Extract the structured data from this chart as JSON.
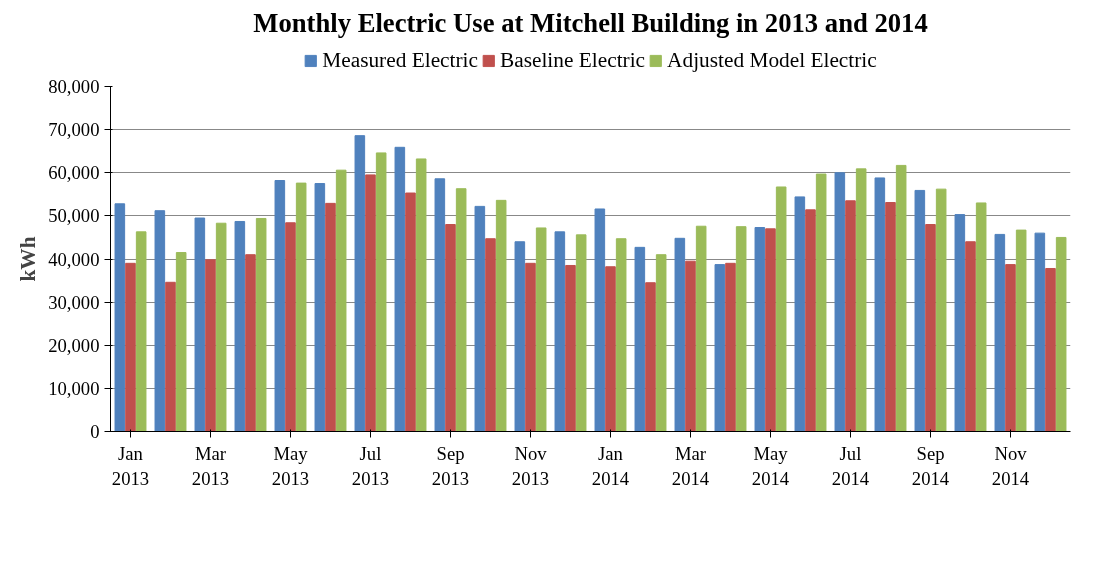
{
  "chart_data": {
    "type": "bar",
    "title": "Monthly Electric Use at Mitchell Building in 2013 and 2014",
    "ylabel": "kWh",
    "categories": [
      "Jan\n2013",
      null,
      "Mar\n2013",
      null,
      "May\n2013",
      null,
      "Jul\n2013",
      null,
      "Sep\n2013",
      null,
      "Nov\n2013",
      null,
      "Jan\n2014",
      null,
      "Mar\n2014",
      null,
      "May\n2014",
      null,
      "Jul\n2014",
      null,
      "Sep\n2014",
      null,
      "Nov\n2014",
      null
    ],
    "series": [
      {
        "name": "Measured Electric",
        "color": "#4f81bd",
        "values": [
          52800,
          51200,
          49500,
          48700,
          58200,
          57500,
          68600,
          65900,
          58600,
          52200,
          44000,
          46300,
          51600,
          42700,
          44800,
          38700,
          47300,
          54400,
          60000,
          58800,
          55900,
          50300,
          45700,
          46000
        ]
      },
      {
        "name": "Baseline Electric",
        "color": "#c0504d",
        "values": [
          39000,
          34600,
          39800,
          41000,
          48400,
          52900,
          59500,
          55300,
          48000,
          44700,
          39000,
          38500,
          38200,
          34500,
          39500,
          39000,
          47000,
          51400,
          53500,
          53100,
          48000,
          44000,
          38700,
          37800
        ]
      },
      {
        "name": "Adjusted Model Electric",
        "color": "#9bbb59",
        "values": [
          46300,
          41500,
          48300,
          49400,
          57600,
          60600,
          64600,
          63200,
          56300,
          53600,
          47200,
          45600,
          44700,
          41000,
          47600,
          47500,
          56700,
          59700,
          60900,
          61700,
          56200,
          53000,
          46700,
          45000
        ]
      }
    ],
    "ylim": [
      0,
      80000
    ],
    "yticks": [
      {
        "value": 0,
        "label": "0"
      },
      {
        "value": 10000,
        "label": "10,000"
      },
      {
        "value": 20000,
        "label": "20,000"
      },
      {
        "value": 30000,
        "label": "30,000"
      },
      {
        "value": 40000,
        "label": "40,000"
      },
      {
        "value": 50000,
        "label": "50,000"
      },
      {
        "value": 60000,
        "label": "60,000"
      },
      {
        "value": 70000,
        "label": "70,000"
      },
      {
        "value": 80000,
        "label": "80,000"
      }
    ],
    "grid": "y",
    "legend": "top"
  }
}
